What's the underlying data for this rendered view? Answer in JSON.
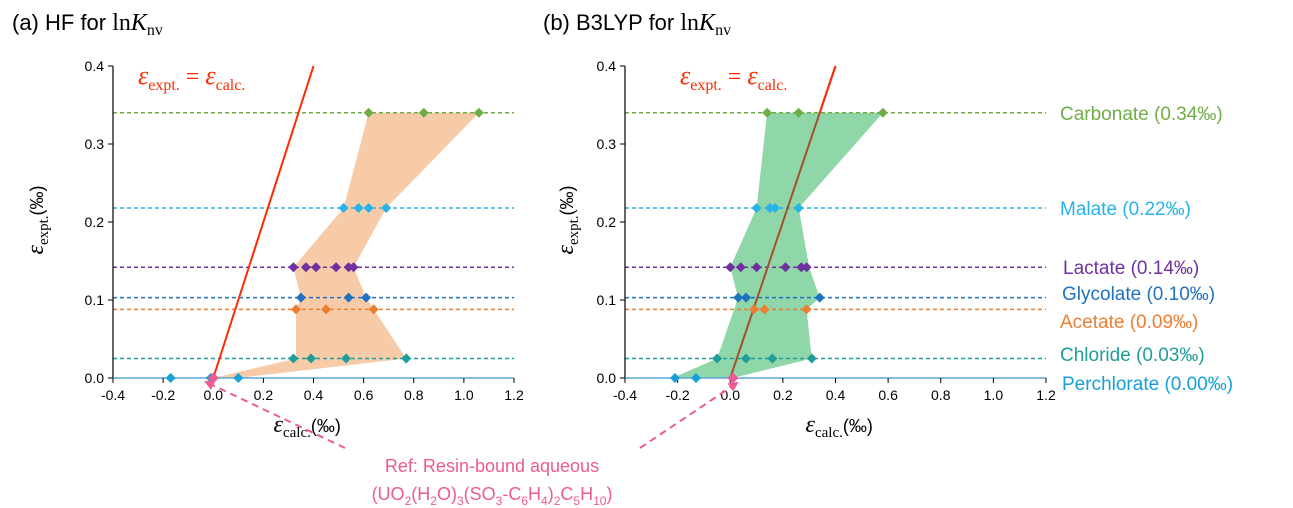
{
  "chart_data": [
    {
      "type": "scatter",
      "title_prefix": "(a) HF for ",
      "title_math": "ln",
      "title_var": "K",
      "title_sub": "nv",
      "xlabel_var": "ε",
      "xlabel_sub": "calc.",
      "xlabel_unit": "(‰)",
      "ylabel_var": "ε",
      "ylabel_sub": "expt.",
      "ylabel_unit": "(‰)",
      "xlim": [
        -0.4,
        1.2
      ],
      "ylim": [
        0.0,
        0.4
      ],
      "xticks": [
        "-0.4",
        "-0.2",
        "0.0",
        "0.2",
        "0.4",
        "0.6",
        "0.8",
        "1.0",
        "1.2"
      ],
      "yticks": [
        "0.0",
        "0.1",
        "0.2",
        "0.3",
        "0.4"
      ],
      "identity_label": {
        "left_var": "ε",
        "left_sub": "expt.",
        "eq": " = ",
        "right_var": "ε",
        "right_sub": "calc."
      },
      "envelope_color": "#f8cba8",
      "envelope": [
        [
          -0.17,
          0.0
        ],
        [
          0.0,
          0.0
        ],
        [
          0.33,
          0.025
        ],
        [
          0.33,
          0.088
        ],
        [
          0.35,
          0.103
        ],
        [
          0.32,
          0.142
        ],
        [
          0.52,
          0.218
        ],
        [
          0.62,
          0.34
        ],
        [
          1.06,
          0.34
        ],
        [
          0.69,
          0.218
        ],
        [
          0.56,
          0.142
        ],
        [
          0.61,
          0.103
        ],
        [
          0.64,
          0.088
        ],
        [
          0.77,
          0.025
        ],
        [
          0.1,
          0.0
        ]
      ],
      "series": [
        {
          "name": "Carbonate",
          "y": 0.34,
          "x": [
            0.62,
            0.84,
            1.06
          ],
          "color": "#70ad47"
        },
        {
          "name": "Malate",
          "y": 0.218,
          "x": [
            0.52,
            0.58,
            0.62,
            0.69
          ],
          "color": "#27b2e8"
        },
        {
          "name": "Lactate",
          "y": 0.142,
          "x": [
            0.32,
            0.37,
            0.41,
            0.49,
            0.54,
            0.56
          ],
          "color": "#7030a0"
        },
        {
          "name": "Glycolate",
          "y": 0.103,
          "x": [
            0.35,
            0.54,
            0.61
          ],
          "color": "#1f72c0"
        },
        {
          "name": "Acetate",
          "y": 0.088,
          "x": [
            0.33,
            0.45,
            0.64
          ],
          "color": "#ed7d31"
        },
        {
          "name": "Chloride",
          "y": 0.025,
          "x": [
            0.32,
            0.39,
            0.53,
            0.77
          ],
          "color": "#1f9d98"
        },
        {
          "name": "Perchlorate",
          "y": 0.0,
          "x": [
            -0.17,
            -0.01,
            0.1
          ],
          "color": "#15a0d8"
        }
      ],
      "reference_point": {
        "x": 0.0,
        "y": 0.0,
        "color": "#ee5a92"
      },
      "identity_line_color": "#ff2a00"
    },
    {
      "type": "scatter",
      "title_prefix": "(b) B3LYP for ",
      "title_math": "ln",
      "title_var": "K",
      "title_sub": "nv",
      "xlabel_var": "ε",
      "xlabel_sub": "calc.",
      "xlabel_unit": "(‰)",
      "ylabel_var": "ε",
      "ylabel_sub": "expt.",
      "ylabel_unit": "(‰)",
      "xlim": [
        -0.4,
        1.2
      ],
      "ylim": [
        0.0,
        0.4
      ],
      "xticks": [
        "-0.4",
        "-0.2",
        "0.0",
        "0.2",
        "0.4",
        "0.6",
        "0.8",
        "1.0",
        "1.2"
      ],
      "yticks": [
        "0.0",
        "0.1",
        "0.2",
        "0.3",
        "0.4"
      ],
      "identity_label": {
        "left_var": "ε",
        "left_sub": "expt.",
        "eq": " = ",
        "right_var": "ε",
        "right_sub": "calc."
      },
      "envelope_color": "#8fd6a8",
      "envelope": [
        [
          -0.22,
          0.0
        ],
        [
          -0.05,
          0.025
        ],
        [
          0.03,
          0.103
        ],
        [
          0.0,
          0.142
        ],
        [
          0.1,
          0.218
        ],
        [
          0.14,
          0.34
        ],
        [
          0.58,
          0.34
        ],
        [
          0.26,
          0.218
        ],
        [
          0.3,
          0.142
        ],
        [
          0.34,
          0.103
        ],
        [
          0.29,
          0.088
        ],
        [
          0.31,
          0.025
        ],
        [
          0.01,
          0.0
        ]
      ],
      "series": [
        {
          "name": "Carbonate",
          "y": 0.34,
          "x": [
            0.14,
            0.26,
            0.58
          ],
          "color": "#70ad47"
        },
        {
          "name": "Malate",
          "y": 0.218,
          "x": [
            0.1,
            0.15,
            0.17,
            0.26
          ],
          "color": "#27b2e8"
        },
        {
          "name": "Lactate",
          "y": 0.142,
          "x": [
            0.0,
            0.04,
            0.1,
            0.21,
            0.27,
            0.29
          ],
          "color": "#7030a0"
        },
        {
          "name": "Glycolate",
          "y": 0.103,
          "x": [
            0.03,
            0.06,
            0.34
          ],
          "color": "#1f72c0"
        },
        {
          "name": "Acetate",
          "y": 0.088,
          "x": [
            0.09,
            0.13,
            0.29
          ],
          "color": "#ed7d31"
        },
        {
          "name": "Chloride",
          "y": 0.025,
          "x": [
            -0.05,
            0.06,
            0.16,
            0.31
          ],
          "color": "#1f9d98"
        },
        {
          "name": "Perchlorate",
          "y": 0.0,
          "x": [
            -0.21,
            -0.13
          ],
          "color": "#15a0d8"
        }
      ],
      "reference_point": {
        "x": 0.01,
        "y": 0.0,
        "color": "#ee5a92"
      },
      "identity_line_color": "#ff2a00",
      "identity_line_inside_color": "#a0522d"
    }
  ],
  "legend_labels": [
    {
      "name": "Carbonate",
      "label": "Carbonate (0.34‰)",
      "color": "#70ad47"
    },
    {
      "name": "Malate",
      "label": "Malate (0.22‰)",
      "color": "#27b2e8"
    },
    {
      "name": "Lactate",
      "label": "Lactate (0.14‰)",
      "color": "#7030a0"
    },
    {
      "name": "Glycolate",
      "label": "Glycolate (0.10‰)",
      "color": "#1f72c0"
    },
    {
      "name": "Acetate",
      "label": "Acetate (0.09‰)",
      "color": "#ed7d31"
    },
    {
      "name": "Chloride",
      "label": "Chloride (0.03‰)",
      "color": "#1f9d98"
    },
    {
      "name": "Perchlorate",
      "label": "Perchlorate (0.00‰)",
      "color": "#15a0d8"
    }
  ],
  "reference_note": {
    "line1": "Ref: Resin-bound aqueous",
    "formula_parts": [
      "(UO",
      "2",
      "(H",
      "2",
      "O)",
      "3",
      "(SO",
      "3",
      "-C",
      "6",
      "H",
      "4",
      ")",
      "2",
      "C",
      "5",
      "H",
      "10",
      ")"
    ],
    "color": "#ee5a92"
  }
}
